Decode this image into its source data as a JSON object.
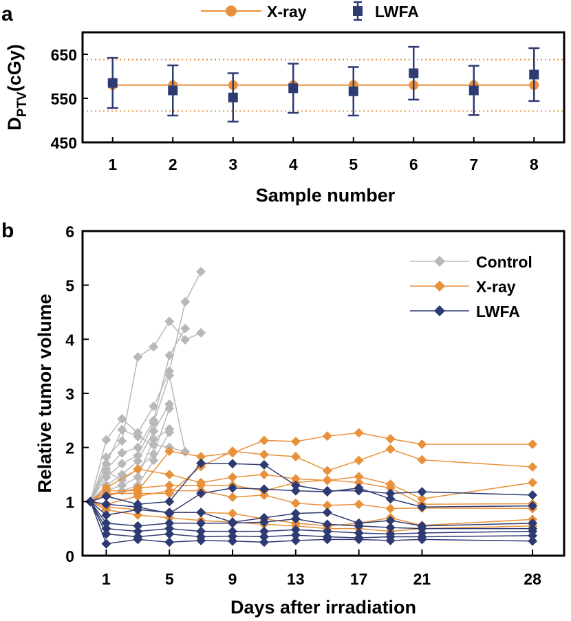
{
  "colors": {
    "xray": "#E8913A",
    "lwfa": "#2E3A72",
    "control": "#B8B8B8",
    "axis": "#000000"
  },
  "chart_data": [
    {
      "panel_label": "a",
      "type": "scatter",
      "xlabel": "Sample number",
      "ylabel_main": "D",
      "ylabel_sub": "PTV",
      "ylabel_unit": "(cGy)",
      "xlim": [
        0.5,
        8.5
      ],
      "ylim": [
        450,
        700
      ],
      "xticks": [
        1,
        2,
        3,
        4,
        5,
        6,
        7,
        8
      ],
      "yticks": [
        450,
        550,
        650
      ],
      "reference_lines": [
        638,
        521
      ],
      "legend": [
        {
          "label": "X-ray",
          "key": "xray"
        },
        {
          "label": "LWFA",
          "key": "lwfa"
        }
      ],
      "series": [
        {
          "name": "X-ray",
          "x": [
            1,
            2,
            3,
            4,
            5,
            6,
            7,
            8
          ],
          "values": [
            580,
            580,
            580,
            580,
            580,
            580,
            580,
            580
          ]
        },
        {
          "name": "LWFA",
          "x": [
            1,
            2,
            3,
            4,
            5,
            6,
            7,
            8
          ],
          "values": [
            585,
            568,
            552,
            573,
            566,
            607,
            568,
            604
          ],
          "err": [
            57,
            57,
            55,
            56,
            55,
            60,
            56,
            60
          ]
        }
      ]
    },
    {
      "panel_label": "b",
      "type": "line",
      "xlabel": "Days after irradiation",
      "ylabel": "Relative tumor volume",
      "xlim": [
        -0.5,
        30
      ],
      "ylim": [
        0,
        6
      ],
      "xticks": [
        1,
        5,
        9,
        13,
        17,
        21,
        28
      ],
      "yticks": [
        0,
        1,
        2,
        3,
        4,
        5,
        6
      ],
      "legend": [
        {
          "label": "Control",
          "key": "control"
        },
        {
          "label": "X-ray",
          "key": "xray"
        },
        {
          "label": "LWFA",
          "key": "lwfa"
        }
      ],
      "groups": [
        {
          "name": "Control",
          "key": "control",
          "days": [
            0,
            1,
            2,
            3,
            4,
            5,
            6,
            7
          ],
          "lines": [
            [
              1,
              2.14,
              2.53,
              2.27,
              2.76,
              3.41,
              4.69,
              5.25
            ],
            [
              1,
              1.82,
              2.12,
              3.67,
              3.86,
              4.33,
              3.99,
              4.12
            ],
            [
              1,
              1.6,
              1.9,
              2.0,
              2.5,
              3.7,
              4.2,
              null
            ],
            [
              1,
              1.45,
              1.7,
              1.85,
              2.45,
              3.33,
              1.92,
              null
            ],
            [
              1,
              1.3,
              1.5,
              1.75,
              2.3,
              2.8,
              null,
              null
            ],
            [
              1,
              1.55,
              1.4,
              1.6,
              1.88,
              2.72,
              null,
              null
            ],
            [
              1,
              1.2,
              1.3,
              1.45,
              2.15,
              2.34,
              null,
              null
            ],
            [
              1,
              1.1,
              1.2,
              1.3,
              1.76,
              2.28,
              null,
              null
            ],
            [
              1,
              1.7,
              2.33,
              2.2,
              2.05,
              2.0,
              1.92,
              null
            ]
          ]
        },
        {
          "name": "X-ray",
          "key": "xray",
          "days": [
            0,
            1,
            3,
            5,
            7,
            9,
            11,
            13,
            15,
            17,
            19,
            21,
            28
          ],
          "lines": [
            [
              1,
              1.2,
              1.2,
              1.93,
              1.83,
              1.9,
              2.13,
              2.11,
              2.21,
              2.27,
              2.16,
              2.06,
              2.06
            ],
            [
              1,
              1.15,
              1.15,
              1.15,
              1.65,
              1.93,
              1.87,
              1.83,
              1.57,
              1.76,
              1.97,
              1.77,
              1.64
            ],
            [
              1,
              1.25,
              1.6,
              1.5,
              1.35,
              1.45,
              1.5,
              1.42,
              1.39,
              1.46,
              1.32,
              1.05,
              1.35
            ],
            [
              1,
              1.1,
              1.25,
              1.3,
              1.3,
              1.3,
              1.2,
              1.35,
              1.4,
              1.35,
              1.25,
              0.95,
              0.96
            ],
            [
              1,
              0.95,
              1.1,
              1.2,
              1.2,
              1.08,
              1.12,
              0.97,
              0.93,
              0.95,
              0.87,
              0.88,
              0.87
            ],
            [
              1,
              0.9,
              0.85,
              0.8,
              0.8,
              0.78,
              0.68,
              0.6,
              0.55,
              0.6,
              0.7,
              0.56,
              0.67
            ],
            [
              1,
              0.85,
              0.75,
              0.7,
              0.65,
              0.62,
              0.58,
              0.55,
              0.5,
              0.5,
              0.45,
              0.5,
              0.55
            ]
          ]
        },
        {
          "name": "LWFA",
          "key": "lwfa",
          "days": [
            0,
            1,
            3,
            5,
            7,
            9,
            11,
            13,
            15,
            17,
            19,
            21,
            28
          ],
          "lines": [
            [
              1,
              1.1,
              0.95,
              1.0,
              1.71,
              1.7,
              1.68,
              1.3,
              1.2,
              1.2,
              1.15,
              1.18,
              1.12
            ],
            [
              1,
              0.95,
              0.9,
              0.78,
              1.15,
              1.25,
              1.23,
              1.2,
              1.18,
              1.25,
              1.05,
              0.9,
              0.92
            ],
            [
              1,
              0.75,
              0.85,
              0.8,
              0.8,
              0.62,
              0.7,
              0.78,
              0.8,
              0.6,
              0.65,
              0.55,
              0.6
            ],
            [
              1,
              0.6,
              0.55,
              0.6,
              0.6,
              0.6,
              0.62,
              0.68,
              0.58,
              0.55,
              0.52,
              0.5,
              0.5
            ],
            [
              1,
              0.5,
              0.45,
              0.5,
              0.45,
              0.45,
              0.45,
              0.48,
              0.45,
              0.42,
              0.4,
              0.42,
              0.45
            ],
            [
              1,
              0.4,
              0.35,
              0.4,
              0.35,
              0.36,
              0.35,
              0.38,
              0.35,
              0.33,
              0.35,
              0.35,
              0.37
            ],
            [
              1,
              0.22,
              0.3,
              0.25,
              0.28,
              0.27,
              0.25,
              0.28,
              0.3,
              0.3,
              0.28,
              0.3,
              0.27
            ]
          ]
        }
      ]
    }
  ]
}
